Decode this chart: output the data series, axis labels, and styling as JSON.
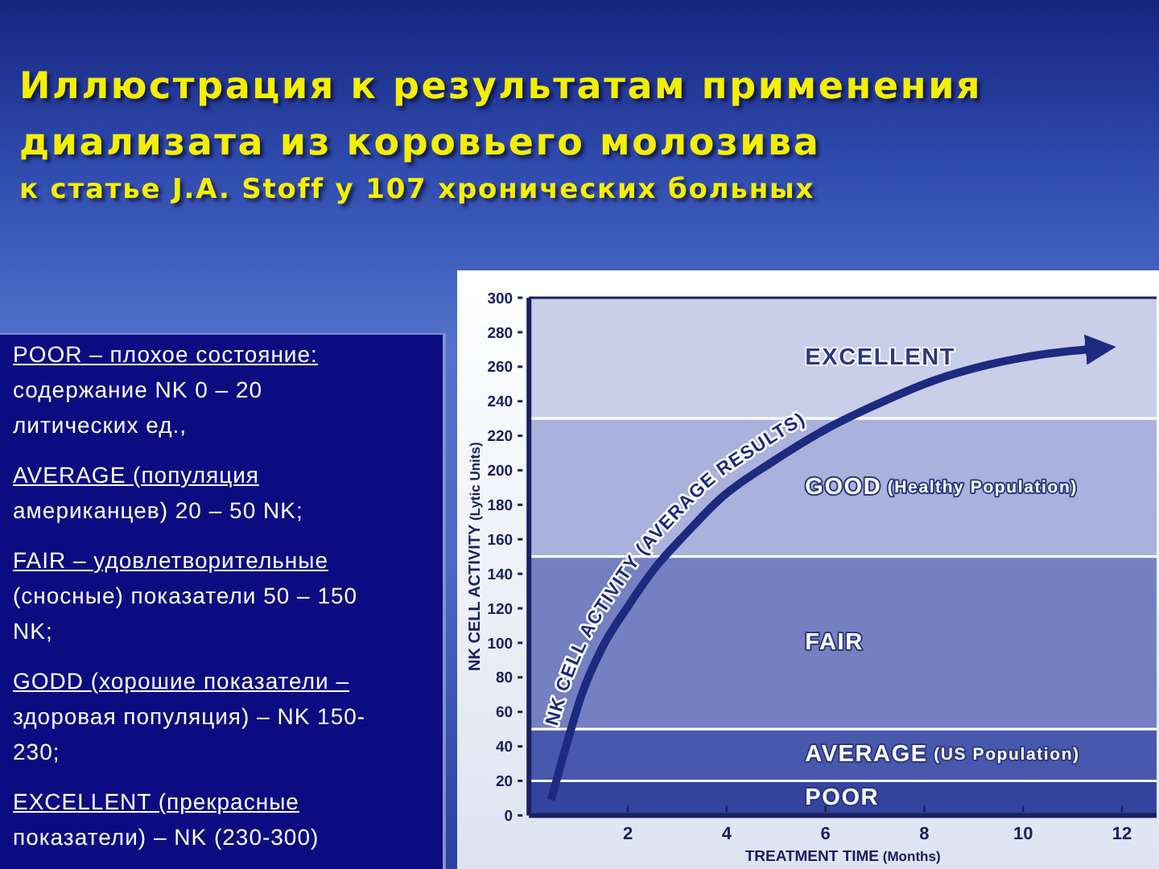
{
  "chart_data": {
    "type": "line",
    "title": "Иллюстрация к результатам применения диализата из коровьего молозива",
    "subtitle": "к статье J.A. Stoff у 107 хронических больных",
    "xlabel": "TREATMENT TIME (Months)",
    "ylabel": "NK CELL ACTIVITY (Lytic Units)",
    "series": [
      {
        "name": "NK CELL ACTIVITY (AVERAGE RESULTS)",
        "color": "#1c2a80",
        "x": [
          0.45,
          0.75,
          1.08,
          1.46,
          2.0,
          2.54,
          3.2,
          3.85,
          4.93,
          6.02,
          7.1,
          8.19,
          9.27,
          10.36,
          11.3
        ],
        "values": [
          9,
          40,
          71,
          96,
          121,
          143,
          164,
          183,
          205,
          224,
          239,
          252,
          261,
          267,
          270
        ]
      }
    ],
    "xlim": [
      0,
      12.7
    ],
    "xticks": [
      2,
      4,
      6,
      8,
      10,
      12
    ],
    "ylim": [
      0,
      300
    ],
    "yticks": [
      0,
      20,
      40,
      60,
      80,
      100,
      120,
      140,
      160,
      180,
      200,
      220,
      240,
      260,
      280,
      300
    ],
    "bands": [
      {
        "axis": "y",
        "from": 0,
        "to": 20,
        "label": "POOR",
        "color": "#34449e"
      },
      {
        "axis": "y",
        "from": 20,
        "to": 50,
        "label": "AVERAGE (US Population)",
        "color": "#4858ac"
      },
      {
        "axis": "y",
        "from": 50,
        "to": 150,
        "label": "FAIR",
        "color": "#7480c2"
      },
      {
        "axis": "y",
        "from": 150,
        "to": 230,
        "label": "GOOD (Healthy Population)",
        "color": "#a9b1dc"
      },
      {
        "axis": "y",
        "from": 230,
        "to": 300,
        "label": "EXCELLENT",
        "color": "#c9cee9"
      }
    ],
    "ref_lines": [
      {
        "axis": "y",
        "value": 20,
        "color": "#ffffff"
      },
      {
        "axis": "y",
        "value": 50,
        "color": "#ffffff"
      },
      {
        "axis": "y",
        "value": 150,
        "color": "#ffffff"
      },
      {
        "axis": "y",
        "value": 230,
        "color": "#ffffff"
      }
    ],
    "annotations": [
      "POOR – плохое состояние: содержание NK 0 – 20 литических ед.,",
      "AVERAGE (популяция американцев) 20 – 50 NK;",
      "FAIR – удовлетворительные (сносные) показатели 50 – 150 NK;",
      "GODD (хорошие показатели – здоровая популяция) – NK 150-230;",
      "EXCELLENT (прекрасные показатели) – NK (230-300)"
    ]
  }
}
